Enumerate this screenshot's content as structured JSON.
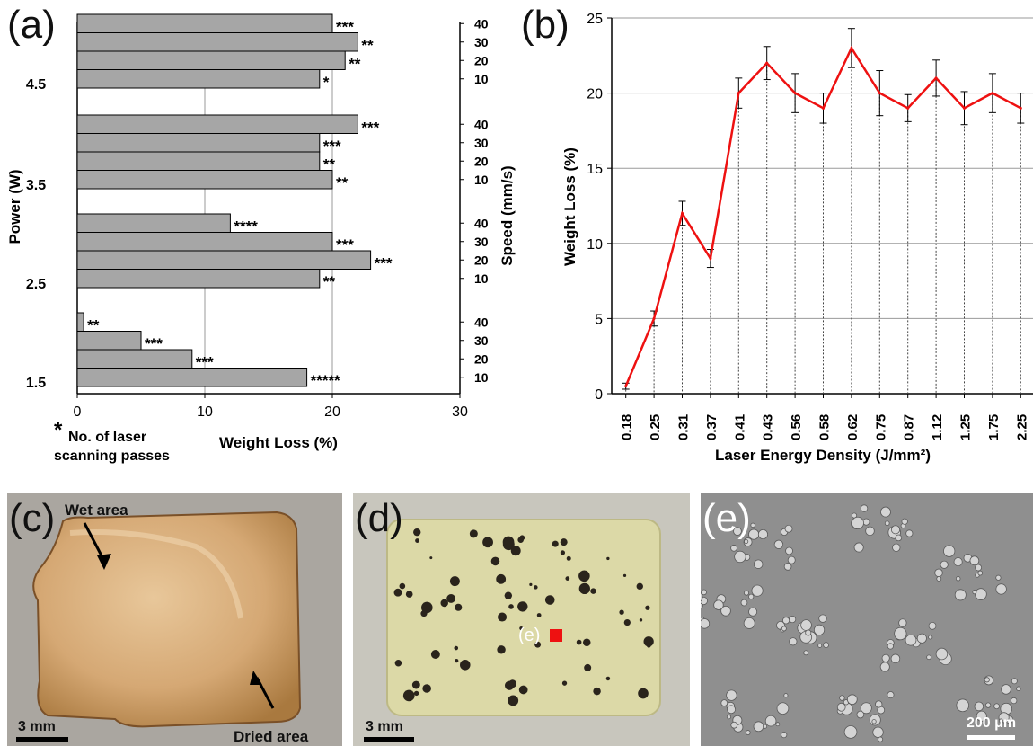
{
  "panels": {
    "a": {
      "letter": "(a)"
    },
    "b": {
      "letter": "(b)"
    },
    "c": {
      "letter": "(c)",
      "wet_label": "Wet area",
      "dried_label": "Dried area",
      "scale_label": "3 mm"
    },
    "d": {
      "letter": "(d)",
      "marker_label": "(e)",
      "scale_label": "3 mm"
    },
    "e": {
      "letter": "(e)",
      "scale_label": "200 μm"
    }
  },
  "chart_data": [
    {
      "type": "bar",
      "orientation": "horizontal",
      "xlabel": "Weight Loss (%)",
      "ylabel_left": "Power (W)",
      "ylabel_right": "Speed (mm/s)",
      "xlim": [
        0,
        30
      ],
      "x_ticks": [
        0,
        10,
        20,
        30
      ],
      "grid": "vertical",
      "footnote_star": "*",
      "footnote_text": [
        "No. of laser",
        "scanning passes"
      ],
      "groups": [
        {
          "power": "4.5",
          "bars": [
            {
              "speed": "10",
              "value": 19,
              "passes": "*"
            },
            {
              "speed": "20",
              "value": 21,
              "passes": "**"
            },
            {
              "speed": "30",
              "value": 22,
              "passes": "**"
            },
            {
              "speed": "40",
              "value": 20,
              "passes": "***"
            }
          ]
        },
        {
          "power": "3.5",
          "bars": [
            {
              "speed": "10",
              "value": 20,
              "passes": "**"
            },
            {
              "speed": "20",
              "value": 19,
              "passes": "**"
            },
            {
              "speed": "30",
              "value": 19,
              "passes": "***"
            },
            {
              "speed": "40",
              "value": 22,
              "passes": "***"
            }
          ]
        },
        {
          "power": "2.5",
          "bars": [
            {
              "speed": "10",
              "value": 19,
              "passes": "**"
            },
            {
              "speed": "20",
              "value": 23,
              "passes": "***"
            },
            {
              "speed": "30",
              "value": 20,
              "passes": "***"
            },
            {
              "speed": "40",
              "value": 12,
              "passes": "****"
            }
          ]
        },
        {
          "power": "1.5",
          "bars": [
            {
              "speed": "10",
              "value": 18,
              "passes": "*****"
            },
            {
              "speed": "20",
              "value": 9,
              "passes": "***"
            },
            {
              "speed": "30",
              "value": 5,
              "passes": "***"
            },
            {
              "speed": "40",
              "value": 0.5,
              "passes": "**"
            }
          ]
        }
      ],
      "bar_color": "#a6a6a6"
    },
    {
      "type": "line",
      "xlabel": "Laser Energy Density (J/mm²)",
      "ylabel": "Weight Loss (%)",
      "ylim": [
        0,
        25
      ],
      "y_ticks": [
        0,
        5,
        10,
        15,
        20,
        25
      ],
      "grid": "horizontal",
      "categories": [
        "0.18",
        "0.25",
        "0.31",
        "0.37",
        "0.41",
        "0.43",
        "0.56",
        "0.58",
        "0.62",
        "0.75",
        "0.87",
        "1.12",
        "1.25",
        "1.75",
        "2.25"
      ],
      "values": [
        0.5,
        5,
        12,
        9,
        20,
        22,
        20,
        19,
        23,
        20,
        19,
        21,
        19,
        20,
        19
      ],
      "errors": [
        0.2,
        0.5,
        0.8,
        0.6,
        1.0,
        1.1,
        1.3,
        1.0,
        1.3,
        1.5,
        0.9,
        1.2,
        1.1,
        1.3,
        1.0
      ],
      "line_color": "#ee1111"
    }
  ]
}
